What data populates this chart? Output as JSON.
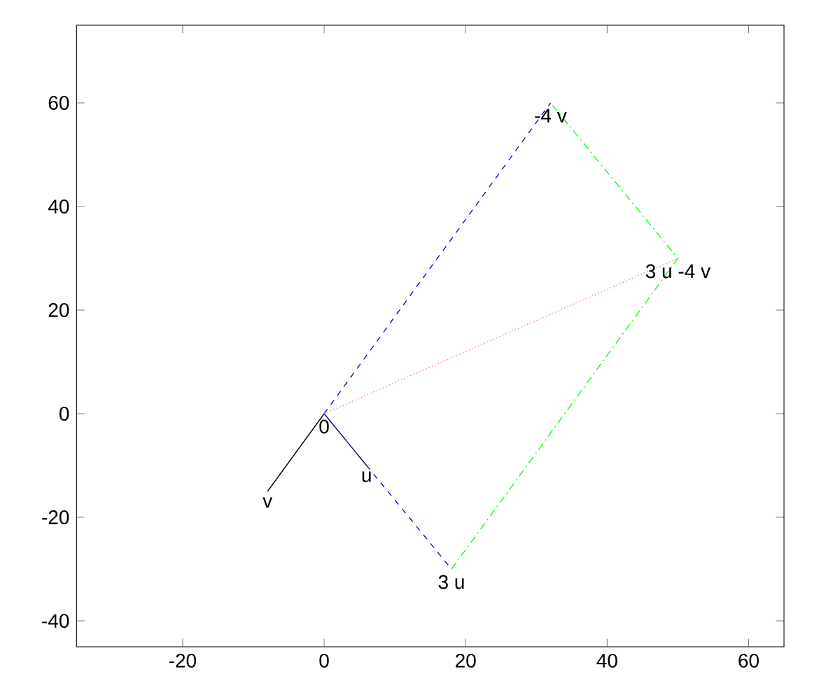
{
  "chart_data": {
    "type": "line",
    "xlim": [
      -35,
      65
    ],
    "ylim": [
      -45,
      75
    ],
    "xticks": [
      -20,
      0,
      20,
      40,
      60
    ],
    "yticks": [
      -40,
      -20,
      0,
      20,
      40,
      60
    ],
    "grid": false,
    "series": [
      {
        "color": "#000080",
        "line_style": "solid",
        "x": [
          0,
          6
        ],
        "values": [
          0,
          -10
        ]
      },
      {
        "color": "#000000",
        "line_style": "solid",
        "x": [
          0,
          -8
        ],
        "values": [
          0,
          -15
        ]
      },
      {
        "color": "#0000ff",
        "line_style": "dashed",
        "x": [
          6,
          18
        ],
        "values": [
          -10,
          -30
        ]
      },
      {
        "color": "#0000ff",
        "line_style": "dashed",
        "x": [
          0,
          32
        ],
        "values": [
          0,
          60
        ]
      },
      {
        "color": "#00ff00",
        "line_style": "dashdot",
        "x": [
          18,
          50,
          32
        ],
        "values": [
          -30,
          30,
          60
        ]
      },
      {
        "color": "#ff8080",
        "line_style": "dotted",
        "x": [
          0,
          50
        ],
        "values": [
          0,
          30
        ]
      }
    ],
    "annotations": [
      {
        "text": "0",
        "x": 0,
        "y": 0
      },
      {
        "text": "u",
        "x": 6,
        "y": -10
      },
      {
        "text": "v",
        "x": -8,
        "y": -15
      },
      {
        "text": "3 u",
        "x": 18,
        "y": -30
      },
      {
        "text": "-4 v",
        "x": 32,
        "y": 60
      },
      {
        "text": "3 u -4 v",
        "x": 50,
        "y": 30
      }
    ]
  }
}
